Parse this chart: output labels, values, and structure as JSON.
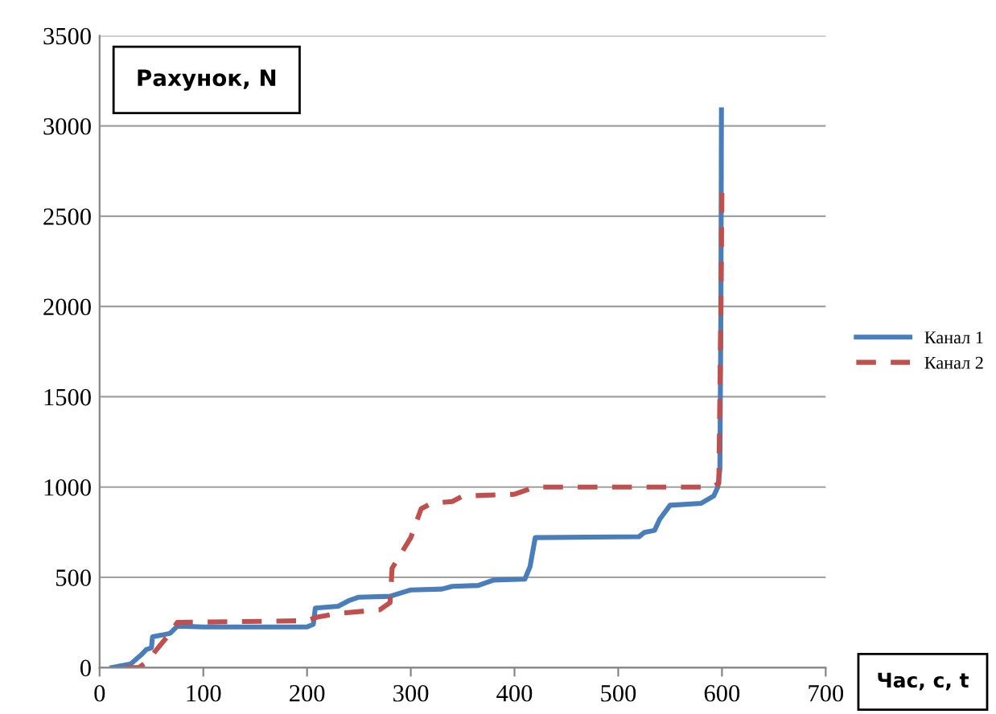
{
  "chart_data": {
    "type": "line",
    "ylabel": "Рахунок, N",
    "xlabel": "Час, с, t",
    "xlim": [
      0,
      700
    ],
    "xticks": [
      0,
      100,
      200,
      300,
      400,
      500,
      600,
      700
    ],
    "ylim": [
      0,
      3500
    ],
    "yticks": [
      0,
      500,
      1000,
      1500,
      2000,
      2500,
      3000,
      3500
    ],
    "grid": "y",
    "legend": "right",
    "marker": "none",
    "series": [
      {
        "name": "Канал 1",
        "color": "#4a7ebb",
        "line_style": "solid",
        "x": [
          12,
          30,
          40,
          45,
          50,
          51,
          60,
          68,
          75,
          100,
          200,
          206,
          208,
          230,
          240,
          250,
          280,
          300,
          330,
          340,
          365,
          380,
          410,
          415,
          420,
          520,
          525,
          535,
          540,
          550,
          580,
          592,
          596,
          598,
          599,
          599.5
        ],
        "values": [
          0,
          20,
          70,
          100,
          110,
          170,
          180,
          190,
          230,
          225,
          225,
          240,
          330,
          340,
          370,
          390,
          395,
          430,
          435,
          450,
          455,
          485,
          490,
          560,
          720,
          725,
          748,
          760,
          822,
          899,
          910,
          950,
          1000,
          1100,
          2000,
          3090
        ]
      },
      {
        "name": "Канал 2",
        "color": "#c0504d",
        "line_style": "dashed",
        "x": [
          25,
          38,
          45,
          55,
          65,
          75,
          200,
          210,
          230,
          270,
          280,
          282,
          300,
          310,
          320,
          340,
          350,
          400,
          420,
          590,
          597,
          599,
          600
        ],
        "values": [
          0,
          0,
          30,
          100,
          170,
          250,
          260,
          280,
          300,
          320,
          360,
          550,
          720,
          880,
          910,
          920,
          950,
          960,
          1000,
          1000,
          1020,
          2000,
          2650
        ]
      }
    ]
  }
}
